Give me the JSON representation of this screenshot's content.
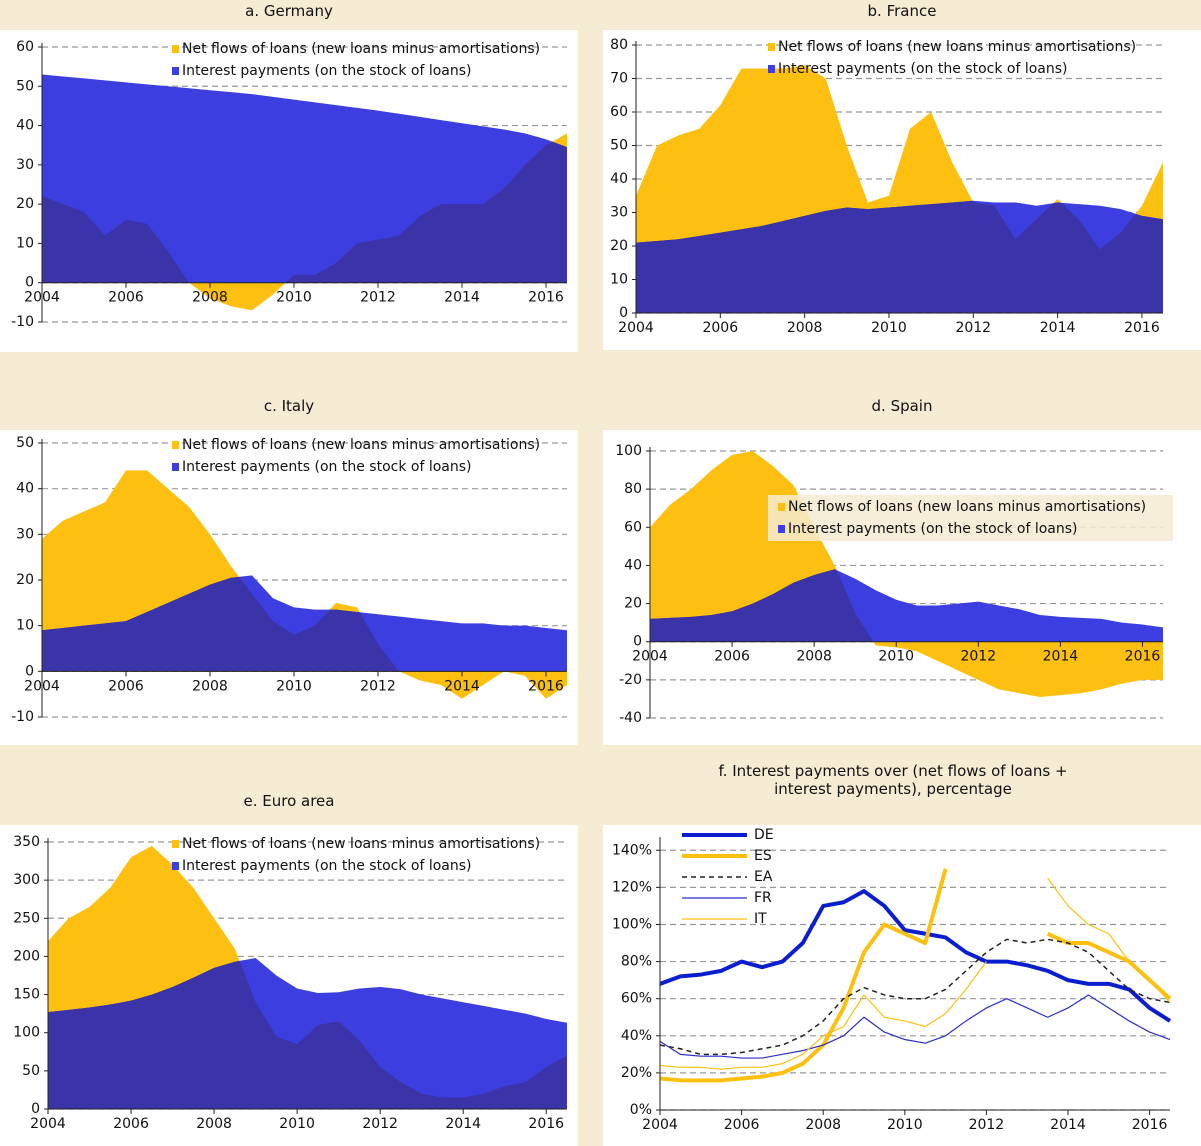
{
  "chart_data": [
    {
      "type": "area",
      "title": "a. Germany",
      "legend": "top-right",
      "grid": true,
      "x": [
        2004,
        2004.5,
        2005,
        2005.5,
        2006,
        2006.5,
        2007,
        2007.5,
        2008,
        2008.5,
        2009,
        2009.5,
        2010,
        2010.5,
        2011,
        2011.5,
        2012,
        2012.5,
        2013,
        2013.5,
        2014,
        2014.5,
        2015,
        2015.5,
        2016,
        2016.5
      ],
      "xlim": [
        2004,
        2016.5
      ],
      "xticks": [
        2004,
        2006,
        2008,
        2010,
        2012,
        2014,
        2016
      ],
      "ylim": [
        -10,
        60
      ],
      "yticks": [
        -10,
        0,
        10,
        20,
        30,
        40,
        50,
        60
      ],
      "series": [
        {
          "name": "Net flows of loans (new loans minus amortisations)",
          "color": "#fdc010",
          "values": [
            22,
            20,
            18,
            12,
            16,
            15,
            8,
            0,
            -4,
            -6,
            -7,
            -3,
            2,
            2,
            5,
            10,
            11,
            12,
            17,
            20,
            20,
            20,
            24,
            30,
            35,
            38
          ]
        },
        {
          "name": "Interest payments (on the stock of loans)",
          "color": "#3c3ee0",
          "values": [
            53,
            52.5,
            52,
            51.5,
            51,
            50.5,
            50,
            49.5,
            49,
            48.5,
            48,
            47.3,
            46.6,
            45.9,
            45.2,
            44.5,
            43.8,
            43,
            42.2,
            41.4,
            40.6,
            39.8,
            39,
            38,
            36.5,
            34.5
          ]
        }
      ]
    },
    {
      "type": "area",
      "title": "b. France",
      "legend": "top-right",
      "grid": true,
      "x": [
        2004,
        2004.5,
        2005,
        2005.5,
        2006,
        2006.5,
        2007,
        2007.5,
        2008,
        2008.5,
        2009,
        2009.5,
        2010,
        2010.5,
        2011,
        2011.5,
        2012,
        2012.5,
        2013,
        2013.5,
        2014,
        2014.5,
        2015,
        2015.5,
        2016,
        2016.5
      ],
      "xlim": [
        2004,
        2016.5
      ],
      "xticks": [
        2004,
        2006,
        2008,
        2010,
        2012,
        2014,
        2016
      ],
      "ylim": [
        0,
        80
      ],
      "yticks": [
        0,
        10,
        20,
        30,
        40,
        50,
        60,
        70,
        80
      ],
      "series": [
        {
          "name": "Net flows of loans (new loans minus amortisations)",
          "color": "#fdc010",
          "values": [
            35,
            50,
            53,
            55,
            62,
            73,
            73,
            73,
            74,
            70,
            50,
            33,
            35,
            55,
            60,
            45,
            33,
            32,
            22,
            28,
            34,
            28,
            19,
            24,
            32,
            45
          ]
        },
        {
          "name": "Interest payments (on the stock of loans)",
          "color": "#3c3ee0",
          "values": [
            21,
            21.5,
            22,
            23,
            24,
            25,
            26,
            27.5,
            29,
            30.5,
            31.5,
            31,
            31.5,
            32,
            32.5,
            33,
            33.5,
            33,
            33,
            32,
            33,
            32.5,
            32,
            31,
            29,
            28
          ]
        }
      ]
    },
    {
      "type": "area",
      "title": "c. Italy",
      "legend": "top-right",
      "grid": true,
      "x": [
        2004,
        2004.5,
        2005,
        2005.5,
        2006,
        2006.5,
        2007,
        2007.5,
        2008,
        2008.5,
        2009,
        2009.5,
        2010,
        2010.5,
        2011,
        2011.5,
        2012,
        2012.5,
        2013,
        2013.5,
        2014,
        2014.5,
        2015,
        2015.5,
        2016,
        2016.5
      ],
      "xlim": [
        2004,
        2016.5
      ],
      "xticks": [
        2004,
        2006,
        2008,
        2010,
        2012,
        2014,
        2016
      ],
      "ylim": [
        -10,
        50
      ],
      "yticks": [
        -10,
        0,
        10,
        20,
        30,
        40,
        50
      ],
      "series": [
        {
          "name": "Net flows of loans (new loans minus amortisations)",
          "color": "#fdc010",
          "values": [
            29,
            33,
            35,
            37,
            44,
            44,
            40,
            36,
            30,
            23,
            17,
            11,
            8,
            10,
            15,
            14,
            6,
            0,
            -2,
            -3,
            -6,
            -3,
            0,
            -1,
            -6,
            -3
          ]
        },
        {
          "name": "Interest payments (on the stock of loans)",
          "color": "#3c3ee0",
          "values": [
            9,
            9.5,
            10,
            10.5,
            11,
            13,
            15,
            17,
            19,
            20.5,
            21,
            16,
            14,
            13.5,
            13.5,
            13,
            12.5,
            12,
            11.5,
            11,
            10.5,
            10.5,
            10,
            10,
            9.5,
            9
          ]
        }
      ]
    },
    {
      "type": "area",
      "title": "d. Spain",
      "legend": "right",
      "grid": true,
      "x": [
        2004,
        2004.5,
        2005,
        2005.5,
        2006,
        2006.5,
        2007,
        2007.5,
        2008,
        2008.5,
        2009,
        2009.5,
        2010,
        2010.5,
        2011,
        2011.5,
        2012,
        2012.5,
        2013,
        2013.5,
        2014,
        2014.5,
        2015,
        2015.5,
        2016,
        2016.5
      ],
      "xlim": [
        2004,
        2016.5
      ],
      "xticks": [
        2004,
        2006,
        2008,
        2010,
        2012,
        2014,
        2016
      ],
      "ylim": [
        -40,
        100
      ],
      "yticks": [
        -40,
        -20,
        0,
        20,
        40,
        60,
        80,
        100
      ],
      "series": [
        {
          "name": "Net flows of loans (new loans minus amortisations)",
          "color": "#fdc010",
          "values": [
            60,
            72,
            80,
            90,
            98,
            100,
            92,
            82,
            60,
            40,
            15,
            -2,
            -3,
            -5,
            -10,
            -15,
            -20,
            -25,
            -27,
            -29,
            -28,
            -27,
            -25,
            -22,
            -20,
            -20
          ]
        },
        {
          "name": "Interest payments (on the stock of loans)",
          "color": "#3c3ee0",
          "values": [
            12,
            12.5,
            13,
            14,
            16,
            20,
            25,
            31,
            35,
            38,
            33,
            27,
            22,
            19,
            19,
            20,
            21,
            19,
            17,
            14,
            13,
            12.5,
            12,
            10,
            9,
            7.5
          ]
        }
      ]
    },
    {
      "type": "area",
      "title": "e. Euro area",
      "legend": "top-right",
      "grid": true,
      "x": [
        2004,
        2004.5,
        2005,
        2005.5,
        2006,
        2006.5,
        2007,
        2007.5,
        2008,
        2008.5,
        2009,
        2009.5,
        2010,
        2010.5,
        2011,
        2011.5,
        2012,
        2012.5,
        2013,
        2013.5,
        2014,
        2014.5,
        2015,
        2015.5,
        2016,
        2016.5
      ],
      "xlim": [
        2004,
        2016.5
      ],
      "xticks": [
        2004,
        2006,
        2008,
        2010,
        2012,
        2014,
        2016
      ],
      "ylim": [
        0,
        350
      ],
      "yticks": [
        0,
        50,
        100,
        150,
        200,
        250,
        300,
        350
      ],
      "series": [
        {
          "name": "Net flows of loans (new loans minus amortisations)",
          "color": "#fdc010",
          "values": [
            220,
            250,
            265,
            290,
            330,
            345,
            320,
            290,
            250,
            210,
            140,
            95,
            85,
            110,
            115,
            90,
            55,
            35,
            20,
            15,
            15,
            20,
            30,
            35,
            55,
            70
          ]
        },
        {
          "name": "Interest payments (on the stock of loans)",
          "color": "#3c3ee0",
          "values": [
            127,
            130,
            133,
            137,
            142,
            150,
            160,
            172,
            185,
            193,
            198,
            175,
            158,
            152,
            153,
            158,
            160,
            157,
            150,
            145,
            140,
            135,
            130,
            125,
            118,
            113
          ]
        }
      ]
    },
    {
      "type": "line",
      "title": "f. Interest payments over (net flows of loans + interest payments), percentage",
      "legend": "top-left",
      "grid": true,
      "x": [
        2004,
        2004.5,
        2005,
        2005.5,
        2006,
        2006.5,
        2007,
        2007.5,
        2008,
        2008.5,
        2009,
        2009.5,
        2010,
        2010.5,
        2011,
        2011.5,
        2012,
        2012.5,
        2013,
        2013.5,
        2014,
        2014.5,
        2015,
        2015.5,
        2016,
        2016.5
      ],
      "xlim": [
        2004,
        2016.5
      ],
      "xticks": [
        2004,
        2006,
        2008,
        2010,
        2012,
        2014,
        2016
      ],
      "ylim": [
        0,
        145
      ],
      "yticks": [
        {
          "value": 0,
          "label": "0%"
        },
        {
          "value": 20,
          "label": "20%"
        },
        {
          "value": 40,
          "label": "40%"
        },
        {
          "value": 60,
          "label": "60%"
        },
        {
          "value": 80,
          "label": "80%"
        },
        {
          "value": 100,
          "label": "100%"
        },
        {
          "value": 120,
          "label": "120%"
        },
        {
          "value": 140,
          "label": "140%"
        }
      ],
      "series": [
        {
          "name": "DE",
          "color": "#0b1ecf",
          "width": 4,
          "values": [
            68,
            72,
            73,
            75,
            80,
            77,
            80,
            90,
            110,
            112,
            118,
            110,
            97,
            95,
            93,
            85,
            80,
            80,
            78,
            75,
            70,
            68,
            68,
            65,
            55,
            48
          ]
        },
        {
          "name": "ES",
          "color": "#fdc010",
          "width": 4,
          "values": [
            17,
            16,
            16,
            16,
            17,
            18,
            20,
            25,
            35,
            55,
            85,
            100,
            95,
            90,
            130,
            null,
            null,
            null,
            null,
            95,
            90,
            90,
            85,
            80,
            70,
            60
          ]
        },
        {
          "name": "EA",
          "color": "#222222",
          "width": 1.5,
          "dash": true,
          "values": [
            35,
            33,
            30,
            30,
            31,
            33,
            35,
            40,
            48,
            60,
            66,
            62,
            60,
            60,
            65,
            75,
            85,
            92,
            90,
            92,
            90,
            85,
            75,
            65,
            60,
            58
          ]
        },
        {
          "name": "FR",
          "color": "#2a2ec8",
          "width": 1.2,
          "values": [
            37,
            30,
            29,
            29,
            28,
            28,
            30,
            32,
            35,
            40,
            50,
            42,
            38,
            36,
            40,
            48,
            55,
            60,
            55,
            50,
            55,
            62,
            55,
            48,
            42,
            38
          ]
        },
        {
          "name": "IT",
          "color": "#fdc010",
          "width": 1.2,
          "values": [
            24,
            23,
            23,
            22,
            23,
            23,
            25,
            30,
            40,
            45,
            62,
            50,
            48,
            45,
            52,
            65,
            80,
            null,
            null,
            125,
            110,
            100,
            95,
            80,
            70,
            58
          ]
        }
      ]
    }
  ]
}
